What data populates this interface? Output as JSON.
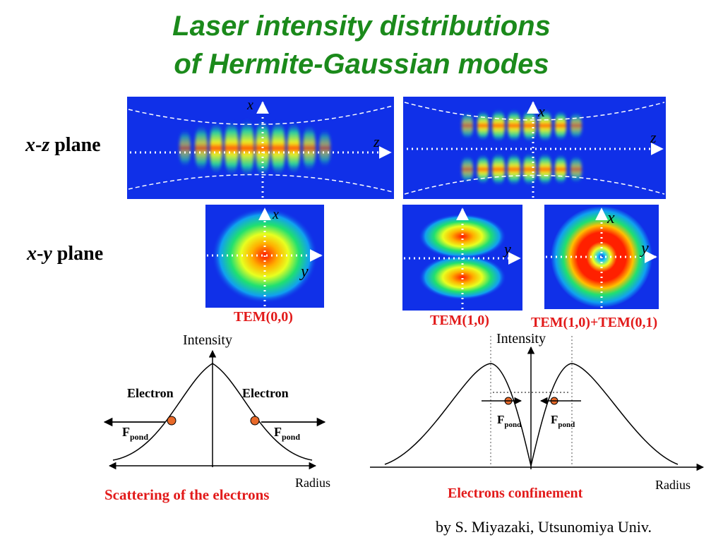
{
  "title": {
    "line1": "Laser intensity distributions",
    "line2": "of Hermite-Gaussian modes"
  },
  "rows": {
    "xz": {
      "var1": "x",
      "sep": "-",
      "var2": "z",
      "word": " plane"
    },
    "xy": {
      "var1": "x",
      "sep": "-",
      "var2": "y",
      "word": " plane"
    }
  },
  "axes": {
    "x": "x",
    "y": "y",
    "z": "z"
  },
  "modes": {
    "tem00": "TEM(0,0)",
    "tem10": "TEM(1,0)",
    "tem10_01": "TEM(1,0)+TEM(0,1)"
  },
  "graphs": {
    "intensity": "Intensity",
    "radius": "Radius",
    "electron": "Electron",
    "f_main": "F",
    "f_sub": "pond"
  },
  "captions": {
    "scattering": "Scattering of the electrons",
    "confinement": "Electrons confinement"
  },
  "credit": "by S. Miyazaki, Utsunomiya Univ.",
  "colors": {
    "title": "#1b8a1b",
    "caption": "#e21a1a",
    "field_background": "#1030e8",
    "electron": "#e86a2a"
  }
}
